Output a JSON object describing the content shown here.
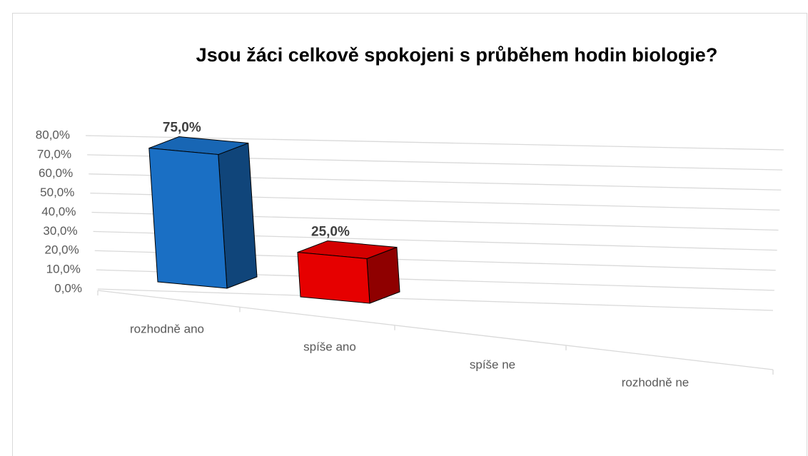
{
  "chart_data": {
    "type": "bar3d",
    "title": "Jsou žáci celkově spokojeni s průběhem hodin biologie?",
    "categories": [
      "rozhodně ano",
      "spíše ano",
      "spíše ne",
      "rozhodně ne"
    ],
    "values": [
      75,
      25,
      0,
      0
    ],
    "value_labels": [
      "75,0%",
      "25,0%",
      null,
      null
    ],
    "colors": [
      "#1a6fc4",
      "#e60000",
      "#1a6fc4",
      "#1a6fc4"
    ],
    "ylim": [
      0,
      80
    ],
    "yticks": [
      {
        "value": 0,
        "label": "0,0%"
      },
      {
        "value": 10,
        "label": "10,0%"
      },
      {
        "value": 20,
        "label": "20,0%"
      },
      {
        "value": 30,
        "label": "30,0%"
      },
      {
        "value": 40,
        "label": "40,0%"
      },
      {
        "value": 50,
        "label": "50,0%"
      },
      {
        "value": 60,
        "label": "60,0%"
      },
      {
        "value": 70,
        "label": "70,0%"
      },
      {
        "value": 80,
        "label": "80,0%"
      }
    ],
    "grid": true
  }
}
